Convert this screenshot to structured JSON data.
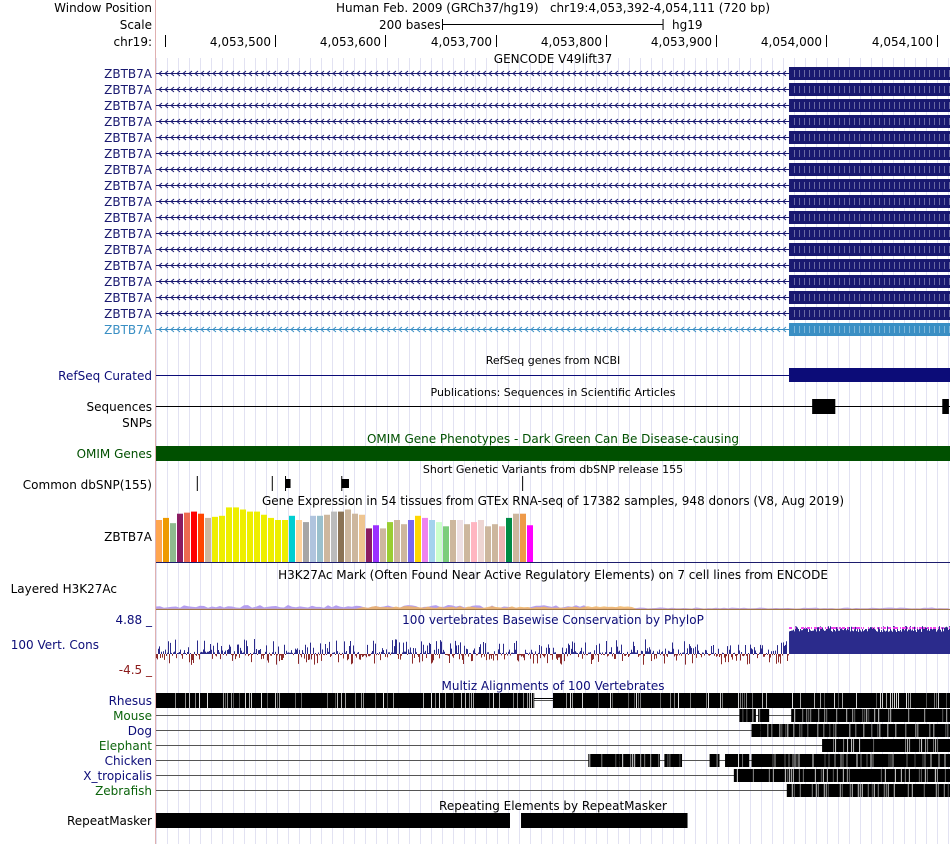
{
  "header": {
    "window_position_label": "Window Position",
    "scale_label": "Scale",
    "chrom_label": "chr19:",
    "assembly_text": "Human Feb. 2009 (GRCh37/hg19)",
    "position_text": "chr19:4,053,392-4,054,111 (720 bp)",
    "scale_text": "200 bases",
    "db_text": "hg19",
    "ruler_ticks": [
      "4,053,500",
      "4,053,600",
      "4,053,700",
      "4,053,800",
      "4,053,900",
      "4,054,000",
      "4,054,100"
    ]
  },
  "region": {
    "start": 4053392,
    "end": 4054111
  },
  "gencode": {
    "title": "GENCODE V49lift37",
    "transcripts": [
      {
        "name": "ZBTB7A",
        "color": "#191970"
      },
      {
        "name": "ZBTB7A",
        "color": "#191970"
      },
      {
        "name": "ZBTB7A",
        "color": "#191970"
      },
      {
        "name": "ZBTB7A",
        "color": "#191970"
      },
      {
        "name": "ZBTB7A",
        "color": "#191970"
      },
      {
        "name": "ZBTB7A",
        "color": "#191970"
      },
      {
        "name": "ZBTB7A",
        "color": "#191970"
      },
      {
        "name": "ZBTB7A",
        "color": "#191970"
      },
      {
        "name": "ZBTB7A",
        "color": "#191970"
      },
      {
        "name": "ZBTB7A",
        "color": "#191970"
      },
      {
        "name": "ZBTB7A",
        "color": "#191970"
      },
      {
        "name": "ZBTB7A",
        "color": "#191970"
      },
      {
        "name": "ZBTB7A",
        "color": "#191970"
      },
      {
        "name": "ZBTB7A",
        "color": "#191970"
      },
      {
        "name": "ZBTB7A",
        "color": "#191970"
      },
      {
        "name": "ZBTB7A",
        "color": "#191970"
      },
      {
        "name": "ZBTB7A",
        "color": "#3a8fc4"
      }
    ],
    "exon_start": 4053966
  },
  "refseq": {
    "title": "RefSeq genes from NCBI",
    "label": "RefSeq Curated",
    "color": "#0c0c78",
    "exon_start": 4053966
  },
  "publications": {
    "title": "Publications: Sequences in Scientific Articles",
    "label": "Sequences",
    "blocks": [
      [
        4053987,
        4054008
      ],
      [
        4054105,
        4054111
      ]
    ]
  },
  "snps": {
    "label": "SNPs"
  },
  "omim": {
    "title": "OMIM Gene Phenotypes - Dark Green Can Be Disease-causing",
    "label": "OMIM Genes",
    "color": "#005000"
  },
  "dbsnp": {
    "title": "Short Genetic Variants from dbSNP release 155",
    "label": "Common dbSNP(155)",
    "snps": [
      4053429,
      4053497,
      4053509,
      4053560,
      4053724
    ],
    "indels": [
      [
        4053509,
        4053514
      ],
      [
        4053560,
        4053567
      ]
    ]
  },
  "gtex": {
    "title": "Gene Expression in 54 tissues from GTEx RNA-seq of 17382 samples, 948 donors (V8, Aug 2019)",
    "label": "ZBTB7A",
    "values": [
      40,
      42,
      37,
      46,
      47,
      48,
      46,
      42,
      43,
      44,
      52,
      52,
      50,
      48,
      48,
      45,
      42,
      40,
      40,
      44,
      40,
      38,
      44,
      44,
      45,
      48,
      48,
      50,
      46,
      45,
      32,
      35,
      32,
      38,
      40,
      36,
      40,
      44,
      42,
      40,
      38,
      34,
      40,
      40,
      36,
      38,
      40,
      34,
      36,
      34,
      42,
      46,
      46,
      35
    ],
    "colors": [
      "#FFA54F",
      "#EE9A00",
      "#8FBC8F",
      "#8B1C62",
      "#EE6A50",
      "#FF0000",
      "#FF4500",
      "#CDB79E",
      "#EEEE00",
      "#EEEE00",
      "#EEEE00",
      "#EEEE00",
      "#EEEE00",
      "#EEEE00",
      "#EEEE00",
      "#EEEE00",
      "#EEEE00",
      "#EEEE00",
      "#EEEE00",
      "#00CED1",
      "#FFD39B",
      "#A6A6A6",
      "#B0C4DE",
      "#9AC0CD",
      "#CDB79E",
      "#BCBCBC",
      "#8B7355",
      "#CDB79E",
      "#CDB79E",
      "#EEC591",
      "#8B1C62",
      "#9B30FF",
      "#CDB79E",
      "#9ACD32",
      "#CDB79E",
      "#CDB79E",
      "#7A67EE",
      "#FFD700",
      "#EE82EE",
      "#A4D3EE",
      "#CCFFCC",
      "#7CCD7C",
      "#CDB79E",
      "#EEE0E5",
      "#CDB79E",
      "#FFB6C1",
      "#EED5D2",
      "#CDB79E",
      "#CDB79E",
      "#EEB4B4",
      "#008B45",
      "#CDB79E",
      "#EE9A49",
      "#FF00FF"
    ]
  },
  "h3k27ac": {
    "title": "H3K27Ac Mark (Often Found Near Active Regulatory Elements) on 7 cell lines from ENCODE",
    "label": "Layered H3K27Ac"
  },
  "cons": {
    "title": "100 vertebrates Basewise Conservation by PhyloP",
    "label": "100 Vert. Cons",
    "max_label": "4.88 _",
    "min_label": "-4.5 _",
    "max": 4.88,
    "min": -4.5,
    "high_start": 4053966
  },
  "multiz": {
    "title": "Multiz Alignments of 100 Vertebrates",
    "species": [
      {
        "name": "Rhesus",
        "color": "#0c0c78",
        "blocks": [
          [
            4053392,
            4053734
          ],
          [
            4053752,
            4054111
          ]
        ],
        "thin": [
          [
            4053734,
            4053752
          ]
        ]
      },
      {
        "name": "Mouse",
        "color": "#0c640c",
        "blocks": [
          [
            4053921,
            4053935
          ],
          [
            4053938,
            4053947
          ],
          [
            4053968,
            4054111
          ]
        ],
        "thin": []
      },
      {
        "name": "Dog",
        "color": "#0c0c78",
        "blocks": [
          [
            4053932,
            4053939
          ],
          [
            4053940,
            4054111
          ]
        ],
        "thin": []
      },
      {
        "name": "Elephant",
        "color": "#0c640c",
        "blocks": [
          [
            4053996,
            4054111
          ]
        ],
        "thin": []
      },
      {
        "name": "Chicken",
        "color": "#0c0c78",
        "blocks": [
          [
            4053784,
            4053811
          ],
          [
            4053812,
            4053848
          ],
          [
            4053853,
            4053868
          ],
          [
            4053894,
            4053902
          ],
          [
            4053908,
            4053929
          ],
          [
            4053932,
            4054111
          ]
        ],
        "thin": []
      },
      {
        "name": "X_tropicalis",
        "color": "#0c0c78",
        "blocks": [
          [
            4053916,
            4054111
          ]
        ],
        "thin": []
      },
      {
        "name": "Zebrafish",
        "color": "#0c640c",
        "blocks": [
          [
            4053964,
            4054111
          ]
        ],
        "thin": []
      }
    ]
  },
  "rmsk": {
    "title": "Repeating Elements by RepeatMasker",
    "label": "RepeatMasker",
    "blocks": [
      [
        4053392,
        4053713
      ],
      [
        4053723,
        4053874
      ]
    ]
  }
}
